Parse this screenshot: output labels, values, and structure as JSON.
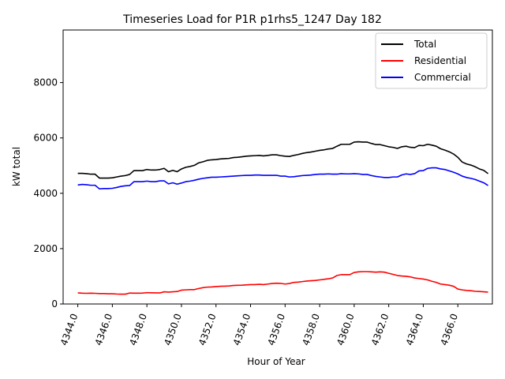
{
  "chart_data": {
    "type": "line",
    "title": "Timeseries Load for P1R p1rhs5_1247  Day 182",
    "xlabel": "Hour of Year",
    "ylabel": "kW total",
    "xlim": [
      4343.15,
      4368.0
    ],
    "ylim": [
      0,
      9900
    ],
    "xticks": [
      4344,
      4346,
      4348,
      4350,
      4352,
      4354,
      4356,
      4358,
      4360,
      4362,
      4364,
      4366
    ],
    "xtick_labels": [
      "4344.0",
      "4346.0",
      "4348.0",
      "4350.0",
      "4352.0",
      "4354.0",
      "4356.0",
      "4358.0",
      "4360.0",
      "4362.0",
      "4364.0",
      "4366.0"
    ],
    "yticks": [
      0,
      2000,
      4000,
      6000,
      8000
    ],
    "ytick_labels": [
      "0",
      "2000",
      "4000",
      "6000",
      "8000"
    ],
    "legend_position": "top-right",
    "series": [
      {
        "name": "Total",
        "color": "#000000",
        "x": [
          4344.0,
          4344.25,
          4344.5,
          4344.75,
          4345.0,
          4345.25,
          4345.5,
          4345.75,
          4346.0,
          4346.25,
          4346.5,
          4346.75,
          4347.0,
          4347.25,
          4347.5,
          4347.75,
          4348.0,
          4348.25,
          4348.5,
          4348.75,
          4349.0,
          4349.25,
          4349.5,
          4349.75,
          4350.0,
          4350.25,
          4350.5,
          4350.75,
          4351.0,
          4351.25,
          4351.5,
          4351.75,
          4352.0,
          4352.25,
          4352.5,
          4352.75,
          4353.0,
          4353.25,
          4353.5,
          4353.75,
          4354.0,
          4354.25,
          4354.5,
          4354.75,
          4355.0,
          4355.25,
          4355.5,
          4355.75,
          4356.0,
          4356.25,
          4356.5,
          4356.75,
          4357.0,
          4357.25,
          4357.5,
          4357.75,
          4358.0,
          4358.25,
          4358.5,
          4358.75,
          4359.0,
          4359.25,
          4359.5,
          4359.75,
          4360.0,
          4360.25,
          4360.5,
          4360.75,
          4361.0,
          4361.25,
          4361.5,
          4361.75,
          4362.0,
          4362.25,
          4362.5,
          4362.75,
          4363.0,
          4363.25,
          4363.5,
          4363.75,
          4364.0,
          4364.25,
          4364.5,
          4364.75,
          4365.0,
          4365.25,
          4365.5,
          4365.75,
          4366.0,
          4366.25,
          4366.5,
          4366.75,
          4367.0,
          4367.25,
          4367.5,
          4367.75
        ],
        "values": [
          4720,
          4720,
          4710,
          4690,
          4690,
          4550,
          4550,
          4550,
          4560,
          4590,
          4620,
          4640,
          4680,
          4820,
          4820,
          4820,
          4860,
          4840,
          4840,
          4860,
          4900,
          4780,
          4830,
          4780,
          4880,
          4940,
          4970,
          5010,
          5100,
          5140,
          5190,
          5210,
          5220,
          5240,
          5250,
          5260,
          5290,
          5300,
          5320,
          5340,
          5350,
          5360,
          5370,
          5350,
          5370,
          5390,
          5390,
          5360,
          5340,
          5330,
          5370,
          5400,
          5440,
          5470,
          5490,
          5520,
          5550,
          5570,
          5600,
          5620,
          5700,
          5770,
          5770,
          5770,
          5850,
          5860,
          5850,
          5850,
          5800,
          5760,
          5760,
          5720,
          5680,
          5660,
          5620,
          5680,
          5700,
          5660,
          5650,
          5730,
          5720,
          5770,
          5740,
          5700,
          5610,
          5560,
          5500,
          5420,
          5300,
          5130,
          5060,
          5020,
          4960,
          4880,
          4830,
          4710
        ]
      },
      {
        "name": "Residential",
        "color": "#ff0000",
        "x": [
          4344.0,
          4344.25,
          4344.5,
          4344.75,
          4345.0,
          4345.25,
          4345.5,
          4345.75,
          4346.0,
          4346.25,
          4346.5,
          4346.75,
          4347.0,
          4347.25,
          4347.5,
          4347.75,
          4348.0,
          4348.25,
          4348.5,
          4348.75,
          4349.0,
          4349.25,
          4349.5,
          4349.75,
          4350.0,
          4350.25,
          4350.5,
          4350.75,
          4351.0,
          4351.25,
          4351.5,
          4351.75,
          4352.0,
          4352.25,
          4352.5,
          4352.75,
          4353.0,
          4353.25,
          4353.5,
          4353.75,
          4354.0,
          4354.25,
          4354.5,
          4354.75,
          4355.0,
          4355.25,
          4355.5,
          4355.75,
          4356.0,
          4356.25,
          4356.5,
          4356.75,
          4357.0,
          4357.25,
          4357.5,
          4357.75,
          4358.0,
          4358.25,
          4358.5,
          4358.75,
          4359.0,
          4359.25,
          4359.5,
          4359.75,
          4360.0,
          4360.25,
          4360.5,
          4360.75,
          4361.0,
          4361.25,
          4361.5,
          4361.75,
          4362.0,
          4362.25,
          4362.5,
          4362.75,
          4363.0,
          4363.25,
          4363.5,
          4363.75,
          4364.0,
          4364.25,
          4364.5,
          4364.75,
          4365.0,
          4365.25,
          4365.5,
          4365.75,
          4366.0,
          4366.25,
          4366.5,
          4366.75,
          4367.0,
          4367.25,
          4367.5,
          4367.75
        ],
        "values": [
          400,
          390,
          385,
          390,
          385,
          375,
          375,
          370,
          370,
          360,
          355,
          355,
          395,
          390,
          390,
          395,
          410,
          405,
          400,
          400,
          440,
          430,
          440,
          450,
          500,
          510,
          520,
          520,
          560,
          590,
          610,
          615,
          630,
          640,
          645,
          650,
          670,
          675,
          680,
          690,
          700,
          700,
          710,
          700,
          720,
          740,
          750,
          745,
          720,
          740,
          780,
          790,
          810,
          830,
          840,
          850,
          870,
          890,
          910,
          940,
          1030,
          1060,
          1060,
          1060,
          1140,
          1160,
          1170,
          1170,
          1160,
          1150,
          1160,
          1150,
          1110,
          1070,
          1030,
          1010,
          1000,
          980,
          940,
          920,
          900,
          870,
          820,
          780,
          720,
          700,
          680,
          640,
          540,
          510,
          490,
          480,
          460,
          450,
          440,
          430
        ]
      },
      {
        "name": "Commercial",
        "color": "#0000ff",
        "x": [
          4344.0,
          4344.25,
          4344.5,
          4344.75,
          4345.0,
          4345.25,
          4345.5,
          4345.75,
          4346.0,
          4346.25,
          4346.5,
          4346.75,
          4347.0,
          4347.25,
          4347.5,
          4347.75,
          4348.0,
          4348.25,
          4348.5,
          4348.75,
          4349.0,
          4349.25,
          4349.5,
          4349.75,
          4350.0,
          4350.25,
          4350.5,
          4350.75,
          4351.0,
          4351.25,
          4351.5,
          4351.75,
          4352.0,
          4352.25,
          4352.5,
          4352.75,
          4353.0,
          4353.25,
          4353.5,
          4353.75,
          4354.0,
          4354.25,
          4354.5,
          4354.75,
          4355.0,
          4355.25,
          4355.5,
          4355.75,
          4356.0,
          4356.25,
          4356.5,
          4356.75,
          4357.0,
          4357.25,
          4357.5,
          4357.75,
          4358.0,
          4358.25,
          4358.5,
          4358.75,
          4359.0,
          4359.25,
          4359.5,
          4359.75,
          4360.0,
          4360.25,
          4360.5,
          4360.75,
          4361.0,
          4361.25,
          4361.5,
          4361.75,
          4362.0,
          4362.25,
          4362.5,
          4362.75,
          4363.0,
          4363.25,
          4363.5,
          4363.75,
          4364.0,
          4364.25,
          4364.5,
          4364.75,
          4365.0,
          4365.25,
          4365.5,
          4365.75,
          4366.0,
          4366.25,
          4366.5,
          4366.75,
          4367.0,
          4367.25,
          4367.5,
          4367.75
        ],
        "values": [
          4300,
          4320,
          4310,
          4290,
          4290,
          4160,
          4170,
          4170,
          4180,
          4210,
          4250,
          4270,
          4280,
          4420,
          4420,
          4420,
          4440,
          4420,
          4420,
          4450,
          4450,
          4340,
          4380,
          4330,
          4370,
          4420,
          4440,
          4470,
          4510,
          4540,
          4560,
          4580,
          4580,
          4590,
          4600,
          4610,
          4620,
          4630,
          4640,
          4650,
          4650,
          4660,
          4660,
          4650,
          4650,
          4650,
          4650,
          4620,
          4620,
          4590,
          4600,
          4620,
          4640,
          4650,
          4660,
          4680,
          4690,
          4690,
          4700,
          4690,
          4690,
          4710,
          4700,
          4700,
          4710,
          4700,
          4680,
          4680,
          4640,
          4610,
          4590,
          4570,
          4570,
          4590,
          4590,
          4660,
          4700,
          4680,
          4710,
          4810,
          4820,
          4900,
          4920,
          4920,
          4880,
          4860,
          4810,
          4760,
          4700,
          4620,
          4570,
          4540,
          4500,
          4440,
          4380,
          4280
        ]
      }
    ]
  }
}
